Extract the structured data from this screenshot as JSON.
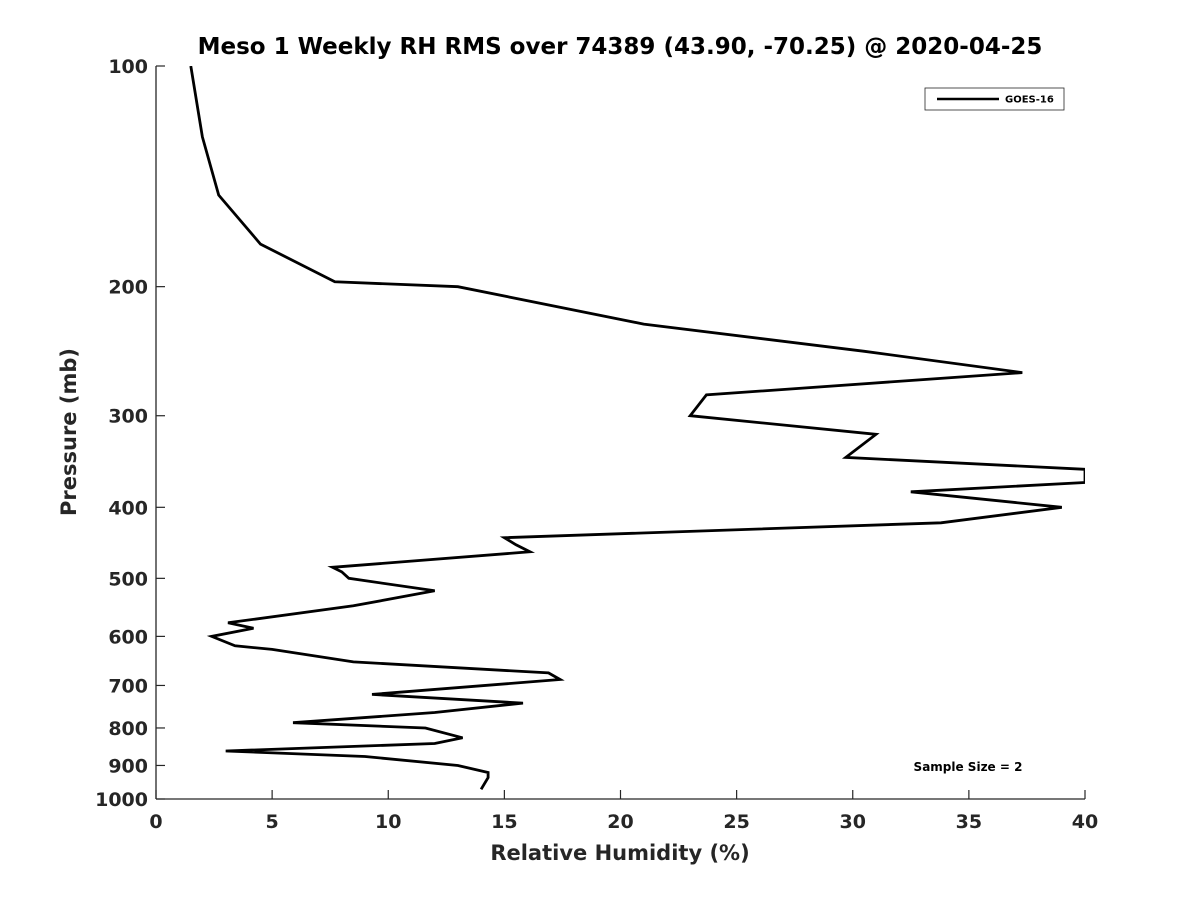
{
  "chart_data": {
    "type": "line",
    "title": "Meso 1 Weekly RH RMS over 74389 (43.90, -70.25) @ 2020-04-25",
    "xlabel": "Relative Humidity (%)",
    "ylabel": "Pressure (mb)",
    "xlim": [
      0,
      40
    ],
    "ylim": [
      100,
      1000
    ],
    "y_scale": "log",
    "y_reversed": true,
    "xticks": [
      0,
      5,
      10,
      15,
      20,
      25,
      30,
      35,
      40
    ],
    "xtick_labels": [
      "0",
      "5",
      "10",
      "15",
      "20",
      "25",
      "30",
      "35",
      "40"
    ],
    "yticks": [
      100,
      200,
      300,
      400,
      500,
      600,
      700,
      800,
      900,
      1000
    ],
    "ytick_labels": [
      "100",
      "200",
      "300",
      "400",
      "500",
      "600",
      "700",
      "800",
      "900",
      "1000"
    ],
    "grid": false,
    "legend_position": "top-right",
    "annotation": "Sample Size = 2",
    "series": [
      {
        "name": "GOES-16",
        "color": "#000000",
        "x": [
          1.5,
          2.0,
          2.7,
          4.5,
          7.7,
          13.0,
          21.0,
          30.5,
          37.3,
          23.7,
          23.0,
          31.0,
          29.7,
          40.0,
          40.0,
          32.5,
          39.0,
          33.8,
          15.0,
          15.5,
          16.1,
          7.6,
          8.0,
          8.3,
          12.0,
          8.5,
          3.1,
          4.2,
          2.4,
          3.4,
          5.0,
          8.5,
          16.9,
          17.4,
          9.3,
          15.8,
          12.0,
          5.9,
          11.6,
          13.2,
          12.0,
          3.0,
          9.0,
          13.0,
          14.3,
          14.3,
          14.0
        ],
        "y": [
          100,
          125,
          150,
          175,
          197,
          200,
          225,
          245,
          262,
          281,
          300,
          318,
          342,
          355,
          370,
          381,
          400,
          420,
          440,
          450,
          460,
          483,
          490,
          500,
          520,
          545,
          575,
          585,
          600,
          618,
          625,
          650,
          673,
          687,
          720,
          740,
          762,
          787,
          800,
          825,
          840,
          860,
          875,
          900,
          920,
          935,
          970
        ]
      }
    ]
  }
}
